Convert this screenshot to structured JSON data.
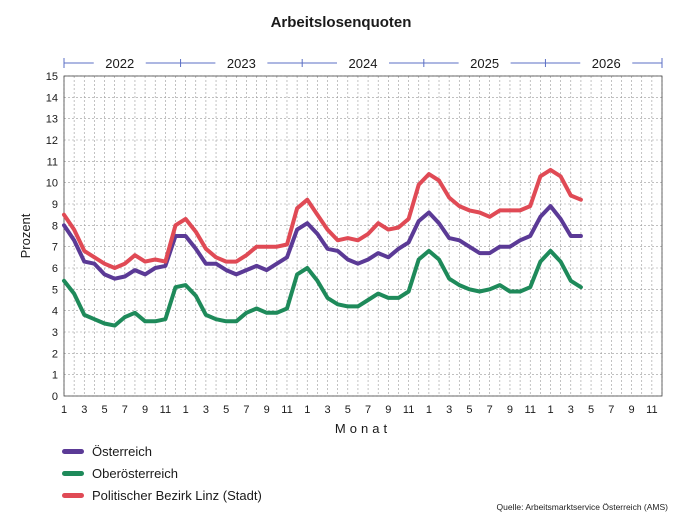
{
  "chart_data": {
    "type": "line",
    "title": "Arbeitslosenquoten",
    "xlabel": "Monat",
    "ylabel": "Prozent",
    "ylim": [
      0,
      15
    ],
    "y_ticks": [
      0,
      1,
      2,
      3,
      4,
      5,
      6,
      7,
      8,
      9,
      10,
      11,
      12,
      13,
      14,
      15
    ],
    "x_tick_labels": [
      "1",
      "3",
      "5",
      "7",
      "9",
      "11",
      "1",
      "3",
      "5",
      "7",
      "9",
      "11",
      "1",
      "3",
      "5",
      "7",
      "9",
      "11",
      "1",
      "3",
      "5",
      "7",
      "9",
      "11",
      "1",
      "3",
      "5",
      "7",
      "9",
      "11"
    ],
    "years": [
      "2022",
      "2023",
      "2024",
      "2025",
      "2026"
    ],
    "grid": true,
    "legend_position": "bottom-left",
    "x_month_index": [
      1,
      2,
      3,
      4,
      5,
      6,
      7,
      8,
      9,
      10,
      11,
      12,
      13,
      14,
      15,
      16,
      17,
      18,
      19,
      20,
      21,
      22,
      23,
      24,
      25,
      26,
      27,
      28,
      29,
      30,
      31,
      32,
      33,
      34,
      35,
      36,
      37,
      38,
      39,
      40,
      41,
      42,
      43,
      44,
      45,
      46,
      47,
      48,
      49,
      50,
      51,
      52
    ],
    "series": [
      {
        "name": "Österreich",
        "color": "#5b3a96",
        "values": [
          8.0,
          7.3,
          6.3,
          6.2,
          5.7,
          5.5,
          5.6,
          5.9,
          5.7,
          6.0,
          6.1,
          7.5,
          7.5,
          6.9,
          6.2,
          6.2,
          5.9,
          5.7,
          5.9,
          6.1,
          5.9,
          6.2,
          6.5,
          7.8,
          8.1,
          7.6,
          6.9,
          6.8,
          6.4,
          6.2,
          6.4,
          6.7,
          6.5,
          6.9,
          7.2,
          8.2,
          8.6,
          8.1,
          7.4,
          7.3,
          7.0,
          6.7,
          6.7,
          7.0,
          7.0,
          7.3,
          7.5,
          8.4,
          8.9,
          8.3,
          7.5,
          7.5
        ]
      },
      {
        "name": "Oberösterreich",
        "color": "#1e8a5a",
        "values": [
          5.4,
          4.8,
          3.8,
          3.6,
          3.4,
          3.3,
          3.7,
          3.9,
          3.5,
          3.5,
          3.6,
          5.1,
          5.2,
          4.7,
          3.8,
          3.6,
          3.5,
          3.5,
          3.9,
          4.1,
          3.9,
          3.9,
          4.1,
          5.7,
          6.0,
          5.4,
          4.6,
          4.3,
          4.2,
          4.2,
          4.5,
          4.8,
          4.6,
          4.6,
          4.9,
          6.4,
          6.8,
          6.4,
          5.5,
          5.2,
          5.0,
          4.9,
          5.0,
          5.2,
          4.9,
          4.9,
          5.1,
          6.3,
          6.8,
          6.3,
          5.4,
          5.1
        ]
      },
      {
        "name": "Politischer Bezirk Linz (Stadt)",
        "color": "#e04a55",
        "values": [
          8.5,
          7.8,
          6.8,
          6.5,
          6.2,
          6.0,
          6.2,
          6.6,
          6.3,
          6.4,
          6.3,
          8.0,
          8.3,
          7.7,
          6.9,
          6.5,
          6.3,
          6.3,
          6.6,
          7.0,
          7.0,
          7.0,
          7.1,
          8.8,
          9.2,
          8.5,
          7.8,
          7.3,
          7.4,
          7.3,
          7.6,
          8.1,
          7.8,
          7.9,
          8.3,
          9.9,
          10.4,
          10.1,
          9.3,
          8.9,
          8.7,
          8.6,
          8.4,
          8.7,
          8.7,
          8.7,
          8.9,
          10.3,
          10.6,
          10.3,
          9.4,
          9.2
        ]
      }
    ],
    "source": "Quelle: Arbeitsmarktservice Österreich (AMS)"
  }
}
